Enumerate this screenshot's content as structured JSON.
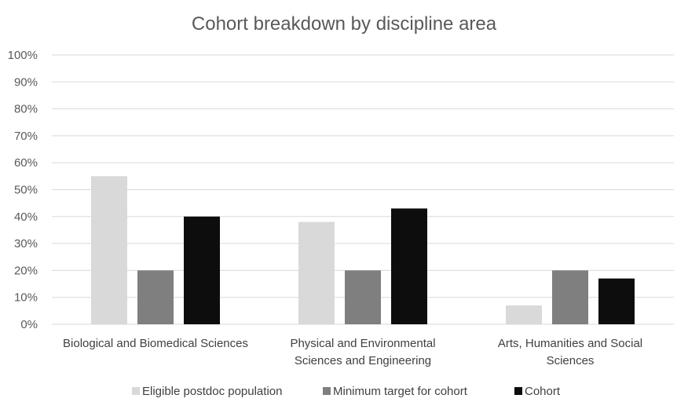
{
  "chart_data": {
    "type": "bar",
    "title": "Cohort breakdown by discipline area",
    "categories": [
      [
        "Biological and Biomedical Sciences"
      ],
      [
        "Physical and Environmental",
        "Sciences and Engineering"
      ],
      [
        "Arts, Humanities and Social",
        "Sciences"
      ]
    ],
    "series": [
      {
        "name": "Eligible postdoc population",
        "color": "#d9d9d9",
        "values": [
          55,
          38,
          7
        ]
      },
      {
        "name": "Minimum target for cohort",
        "color": "#7f7f7f",
        "values": [
          20,
          20,
          20
        ]
      },
      {
        "name": "Cohort",
        "color": "#0d0d0d",
        "values": [
          40,
          43,
          17
        ]
      }
    ],
    "ylim": [
      0,
      100
    ],
    "yticks": [
      "0%",
      "10%",
      "20%",
      "30%",
      "40%",
      "50%",
      "60%",
      "70%",
      "80%",
      "90%",
      "100%"
    ],
    "grid": true,
    "legend": "bottom",
    "xlabel": "",
    "ylabel": ""
  }
}
